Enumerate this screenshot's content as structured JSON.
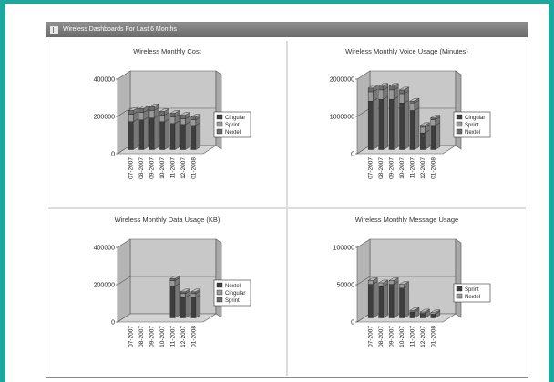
{
  "panel": {
    "title": "Wireless Dashboards For Last 6 Months",
    "icon": "grid-icon"
  },
  "colors": {
    "plot_back": "#c8c8c8",
    "plot_wall": "#b4b4b4",
    "floor": "#d4d4d4",
    "bar_dark": "#3e3e3e",
    "bar_light": "#9a9a9a"
  },
  "chart_data": [
    {
      "type": "bar",
      "title": "Wireless Monthly Cost",
      "categories": [
        "07-2007",
        "08-2007",
        "09-2007",
        "10-2007",
        "11-2007",
        "12-2007",
        "01-2008"
      ],
      "yticks": [
        "400000",
        "200000",
        "0"
      ],
      "ylim": [
        0,
        400000
      ],
      "stacked": true,
      "legend_position": "right",
      "series": [
        {
          "name": "Cingular",
          "values": [
            150000,
            160000,
            170000,
            150000,
            140000,
            135000,
            130000
          ]
        },
        {
          "name": "Sprint",
          "values": [
            40000,
            40000,
            40000,
            35000,
            35000,
            30000,
            30000
          ]
        },
        {
          "name": "Nextel",
          "values": [
            20000,
            20000,
            20000,
            20000,
            20000,
            20000,
            15000
          ]
        }
      ]
    },
    {
      "type": "bar",
      "title": "Wireless Monthly Voice Usage (Minutes)",
      "categories": [
        "07-2007",
        "08-2007",
        "09-2007",
        "10-2007",
        "11-2007",
        "12-2007",
        "01-2008"
      ],
      "yticks": [
        "2000000",
        "1000000",
        "0"
      ],
      "ylim": [
        0,
        2000000
      ],
      "stacked": true,
      "legend_position": "right",
      "series": [
        {
          "name": "Cingular",
          "values": [
            1300000,
            1350000,
            1350000,
            1250000,
            1050000,
            450000,
            650000
          ]
        },
        {
          "name": "Sprint",
          "values": [
            250000,
            250000,
            250000,
            250000,
            200000,
            150000,
            150000
          ]
        },
        {
          "name": "Nextel",
          "values": [
            100000,
            100000,
            100000,
            100000,
            50000,
            50000,
            50000
          ]
        }
      ]
    },
    {
      "type": "bar",
      "title": "Wireless Monthly Data Usage (KB)",
      "categories": [
        "07-2007",
        "08-2007",
        "09-2007",
        "10-2007",
        "11-2007",
        "12-2007",
        "01-2008"
      ],
      "yticks": [
        "400000",
        "200000",
        "0"
      ],
      "ylim": [
        0,
        400000
      ],
      "stacked": true,
      "legend_position": "right",
      "series": [
        {
          "name": "Nextel",
          "values": [
            0,
            0,
            0,
            0,
            170000,
            110000,
            110000
          ]
        },
        {
          "name": "Cingular",
          "values": [
            0,
            0,
            0,
            0,
            30000,
            20000,
            20000
          ]
        },
        {
          "name": "Sprint",
          "values": [
            0,
            0,
            0,
            0,
            10000,
            10000,
            10000
          ]
        }
      ]
    },
    {
      "type": "bar",
      "title": "Wireless Monthly Message Usage",
      "categories": [
        "07-2007",
        "08-2007",
        "09-2007",
        "10-2007",
        "11-2007",
        "12-2007",
        "01-2008"
      ],
      "yticks": [
        "100000",
        "50000",
        "0"
      ],
      "ylim": [
        0,
        100000
      ],
      "stacked": true,
      "legend_position": "right",
      "series": [
        {
          "name": "Sprint",
          "values": [
            45000,
            42000,
            45000,
            40000,
            8000,
            6000,
            5000
          ]
        },
        {
          "name": "Nextel",
          "values": [
            5000,
            5000,
            5000,
            5000,
            2000,
            2000,
            2000
          ]
        }
      ]
    }
  ]
}
